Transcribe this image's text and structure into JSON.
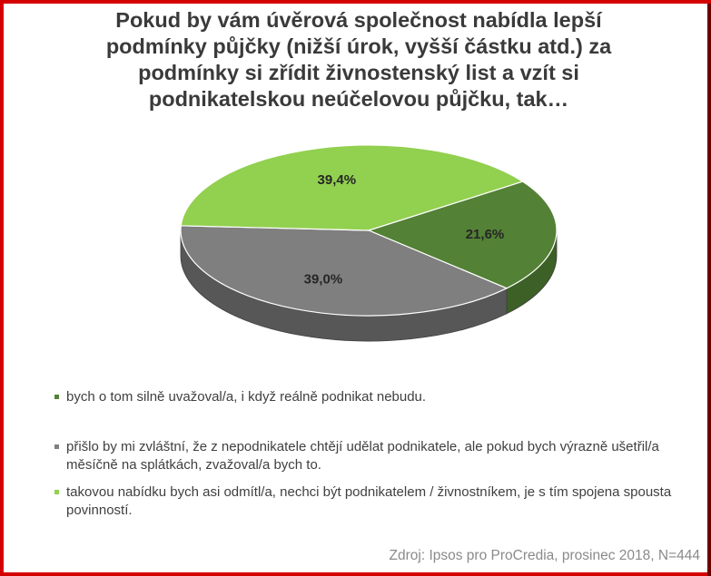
{
  "title_lines": [
    "Pokud by vám úvěrová společnost nabídla lepší",
    "podmínky půjčky (nižší úrok, vyšší částku atd.) za",
    "podmínky si zřídit živnostenský list a vzít si",
    "podnikatelskou neúčelovou půjčku, tak…"
  ],
  "chart_data": {
    "type": "pie",
    "title": "Pokud by vám úvěrová společnost nabídla lepší podmínky půjčky (nižší úrok, vyšší částku atd.) za podmínky si zřídit živnostenský list a vzít si podnikatelskou neúčelovou půjčku, tak…",
    "slices": [
      {
        "label": "bych o tom silně uvažoval/a, i když reálně podnikat nebudu.",
        "value": 21.6,
        "display": "21,6%",
        "color": "#538135",
        "side_color": "#3d6026"
      },
      {
        "label": "přišlo by mi zvláštní, že z nepodnikatele chtějí udělat podnikatele, ale pokud bych výrazně ušetřil/a měsíčně na splátkách, zvažoval/a bych to.",
        "value": 39.0,
        "display": "39,0%",
        "color": "#7f7f7f",
        "side_color": "#575757"
      },
      {
        "label": "takovou nabídku bych asi odmítl/a, nechci být podnikatelem / živnostníkem, je s tím spojena spousta povinností.",
        "value": 39.4,
        "display": "39,4%",
        "color": "#92d050",
        "side_color": "#6ea13a"
      }
    ]
  },
  "legend": [
    {
      "text": "bych o tom silně uvažoval/a, i když reálně podnikat nebudu.",
      "color": "#538135"
    },
    {
      "text": "přišlo by mi zvláštní, že z nepodnikatele chtějí udělat podnikatele, ale pokud bych výrazně ušetřil/a měsíčně na splátkách, zvažoval/a bych to.",
      "color": "#7f7f7f"
    },
    {
      "text": "takovou nabídku bych asi odmítl/a, nechci být podnikatelem / živnostníkem, je s tím spojena spousta povinností.",
      "color": "#92d050"
    }
  ],
  "source": "Zdroj: Ipsos pro ProCredia, prosinec 2018, N=444"
}
